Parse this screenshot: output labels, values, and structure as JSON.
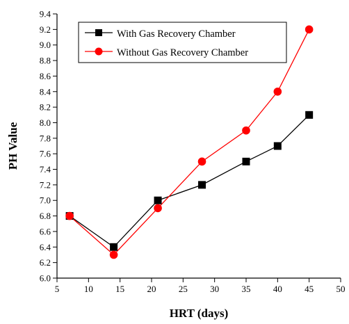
{
  "chart_data": {
    "type": "line",
    "title": "",
    "xlabel": "HRT (days)",
    "ylabel": "PH Value",
    "xlim": [
      5,
      50
    ],
    "ylim": [
      6.0,
      9.4
    ],
    "xticks": [
      5,
      10,
      15,
      20,
      25,
      30,
      35,
      40,
      45,
      50
    ],
    "yticks": [
      6.0,
      6.2,
      6.4,
      6.6,
      6.8,
      7.0,
      7.2,
      7.4,
      7.6,
      7.8,
      8.0,
      8.2,
      8.4,
      8.6,
      8.8,
      9.0,
      9.2,
      9.4
    ],
    "x": [
      7,
      14,
      21,
      28,
      35,
      40,
      45
    ],
    "grid": false,
    "legend_position": "top-left",
    "series": [
      {
        "name": "With Gas Recovery Chamber",
        "values": [
          6.8,
          6.4,
          7.0,
          7.2,
          7.5,
          7.7,
          8.1
        ],
        "color": "#000000",
        "marker": "square"
      },
      {
        "name": "Without Gas Recovery Chamber",
        "values": [
          6.8,
          6.3,
          6.9,
          7.5,
          7.9,
          8.4,
          9.2
        ],
        "color": "#ff0000",
        "marker": "circle"
      }
    ]
  }
}
